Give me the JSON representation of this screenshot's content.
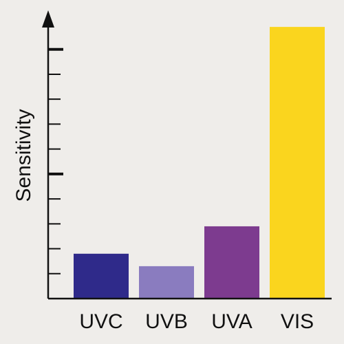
{
  "chart_data": {
    "type": "bar",
    "y_label": "Sensitivity",
    "categories": [
      "UVC",
      "UVB",
      "UVA",
      "VIS"
    ],
    "values": [
      1.8,
      1.3,
      2.9,
      10.9
    ],
    "colors": [
      "#2f2a8a",
      "#8a7cbf",
      "#7d3b8f",
      "#fad51e"
    ],
    "ylim": [
      0,
      11.4
    ],
    "yticks": [
      1,
      2,
      3,
      4,
      5,
      6,
      7,
      8,
      9,
      10
    ],
    "major_yticks": [
      5,
      10
    ]
  }
}
